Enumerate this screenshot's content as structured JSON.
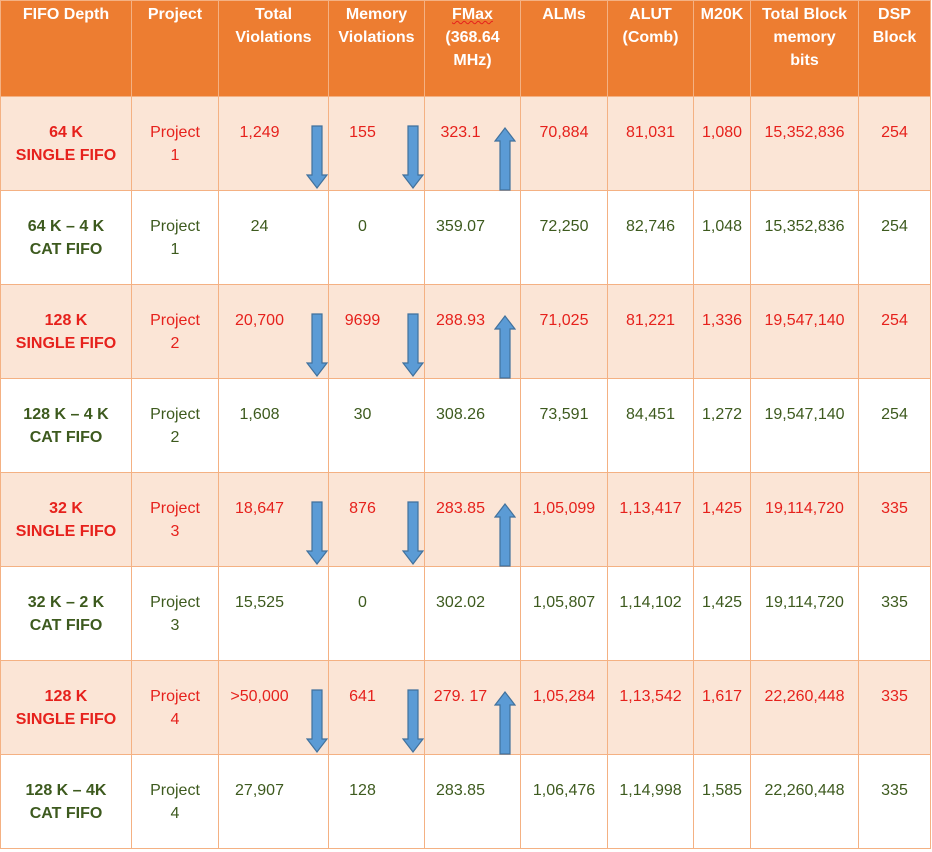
{
  "headers": {
    "depth": "FIFO Depth",
    "project": "Project",
    "total_violations": [
      "Total",
      "Violations"
    ],
    "memory_violations": [
      "Memory",
      "Violations"
    ],
    "fmax": [
      "FMax",
      "(368.64",
      "MHz)"
    ],
    "alms": "ALMs",
    "alut": [
      "ALUT",
      "(Comb)"
    ],
    "m20k": "M20K",
    "block_bits": [
      "Total Block",
      "memory",
      "bits"
    ],
    "dsp": [
      "DSP",
      "Block"
    ]
  },
  "colors": {
    "header_bg": "#ed7d31",
    "single_row_bg": "#fbe5d6",
    "single_text": "#e6211c",
    "cat_text": "#3d5a1e",
    "arrow_fill": "#5b9bd5",
    "arrow_stroke": "#41719c",
    "border": "#f4b183"
  },
  "rows": [
    {
      "kind": "single",
      "depth": [
        "64 K",
        "SINGLE FIFO"
      ],
      "project": [
        "Project",
        "1"
      ],
      "total_violations": "1,249",
      "memory_violations": "155",
      "fmax": "323.1",
      "alms": "70,884",
      "alut": "81,031",
      "m20k": "1,080",
      "block_bits": "15,352,836",
      "dsp": "254"
    },
    {
      "kind": "cat",
      "depth": [
        "64 K – 4 K",
        "CAT FIFO"
      ],
      "project": [
        "Project",
        "1"
      ],
      "total_violations": "24",
      "memory_violations": "0",
      "fmax": "359.07",
      "alms": "72,250",
      "alut": "82,746",
      "m20k": "1,048",
      "block_bits": "15,352,836",
      "dsp": "254"
    },
    {
      "kind": "single",
      "depth": [
        "128 K",
        "SINGLE FIFO"
      ],
      "project": [
        "Project",
        "2"
      ],
      "total_violations": "20,700",
      "memory_violations": "9699",
      "fmax": "288.93",
      "alms": "71,025",
      "alut": "81,221",
      "m20k": "1,336",
      "block_bits": "19,547,140",
      "dsp": "254"
    },
    {
      "kind": "cat",
      "depth": [
        "128 K – 4 K",
        "CAT FIFO"
      ],
      "project": [
        "Project",
        "2"
      ],
      "total_violations": "1,608",
      "memory_violations": "30",
      "fmax": "308.26",
      "alms": "73,591",
      "alut": "84,451",
      "m20k": "1,272",
      "block_bits": "19,547,140",
      "dsp": "254"
    },
    {
      "kind": "single",
      "depth": [
        "32 K",
        "SINGLE FIFO"
      ],
      "project": [
        "Project",
        "3"
      ],
      "total_violations": "18,647",
      "memory_violations": "876",
      "fmax": "283.85",
      "alms": "1,05,099",
      "alut": "1,13,417",
      "m20k": "1,425",
      "block_bits": "19,114,720",
      "dsp": "335"
    },
    {
      "kind": "cat",
      "depth": [
        "32 K –  2 K",
        "CAT FIFO"
      ],
      "project": [
        "Project",
        "3"
      ],
      "total_violations": "15,525",
      "memory_violations": "0",
      "fmax": "302.02",
      "alms": "1,05,807",
      "alut": "1,14,102",
      "m20k": "1,425",
      "block_bits": "19,114,720",
      "dsp": "335"
    },
    {
      "kind": "single",
      "depth": [
        "128 K",
        "SINGLE FIFO"
      ],
      "project": [
        "Project",
        "4"
      ],
      "total_violations": ">50,000",
      "memory_violations": "641",
      "fmax": "279. 17",
      "alms": "1,05,284",
      "alut": "1,13,542",
      "m20k": "1,617",
      "block_bits": "22,260,448",
      "dsp": "335"
    },
    {
      "kind": "cat",
      "depth": [
        "128 K – 4K",
        "CAT FIFO"
      ],
      "project": [
        "Project",
        "4"
      ],
      "total_violations": "27,907",
      "memory_violations": "128",
      "fmax": "283.85",
      "alms": "1,06,476",
      "alut": "1,14,998",
      "m20k": "1,585",
      "block_bits": "22,260,448",
      "dsp": "335"
    }
  ]
}
